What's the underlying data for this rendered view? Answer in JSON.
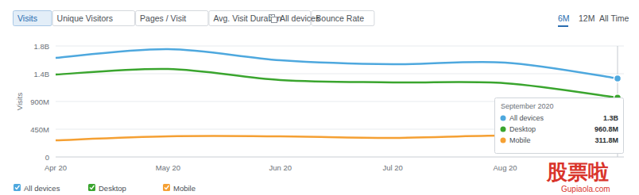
{
  "chart_data": {
    "type": "line",
    "tabs": [
      "Visits",
      "Unique Visitors",
      "Pages / Visit",
      "Avg. Visit Duration",
      "Bounce Rate"
    ],
    "device_filter": "All devices",
    "ranges": [
      "6M",
      "12M",
      "All Time"
    ],
    "y_label": "Visits",
    "categories": [
      "Apr 20",
      "May 20",
      "Jun 20",
      "Jul 20",
      "Aug 20",
      null
    ],
    "series": [
      {
        "name": "All devices",
        "color": "#4ea8de",
        "values": [
          1607000000,
          1749000000,
          1569000000,
          1504000000,
          1530000000,
          1272600000
        ],
        "value_labels": [
          null,
          null,
          null,
          null,
          null,
          "1.3B"
        ]
      },
      {
        "name": "Desktop",
        "color": "#3aa52e",
        "values": [
          1337000000,
          1427000000,
          1247000000,
          1209000000,
          1196000000,
          960800000
        ],
        "value_labels": [
          null,
          null,
          null,
          null,
          null,
          "960.8M"
        ]
      },
      {
        "name": "Mobile",
        "color": "#f5a033",
        "values": [
          270000000,
          334000000,
          334000000,
          309000000,
          347000000,
          311800000
        ],
        "value_labels": [
          null,
          null,
          null,
          null,
          null,
          "311.8M"
        ]
      }
    ],
    "annotation": "September 2020",
    "ylim": [
      0,
      1800000000
    ],
    "yticks": [
      0,
      {
        "value": 450000000,
        "label": "450M"
      },
      {
        "value": 900000000,
        "label": "900M"
      },
      {
        "value": 1350000000,
        "label": "1.4B"
      },
      {
        "value": 1800000000,
        "label": "1.8B"
      }
    ],
    "grid": true,
    "legend": "bottom",
    "watermark": [
      "股票啦",
      "Gupiaola.com"
    ]
  }
}
